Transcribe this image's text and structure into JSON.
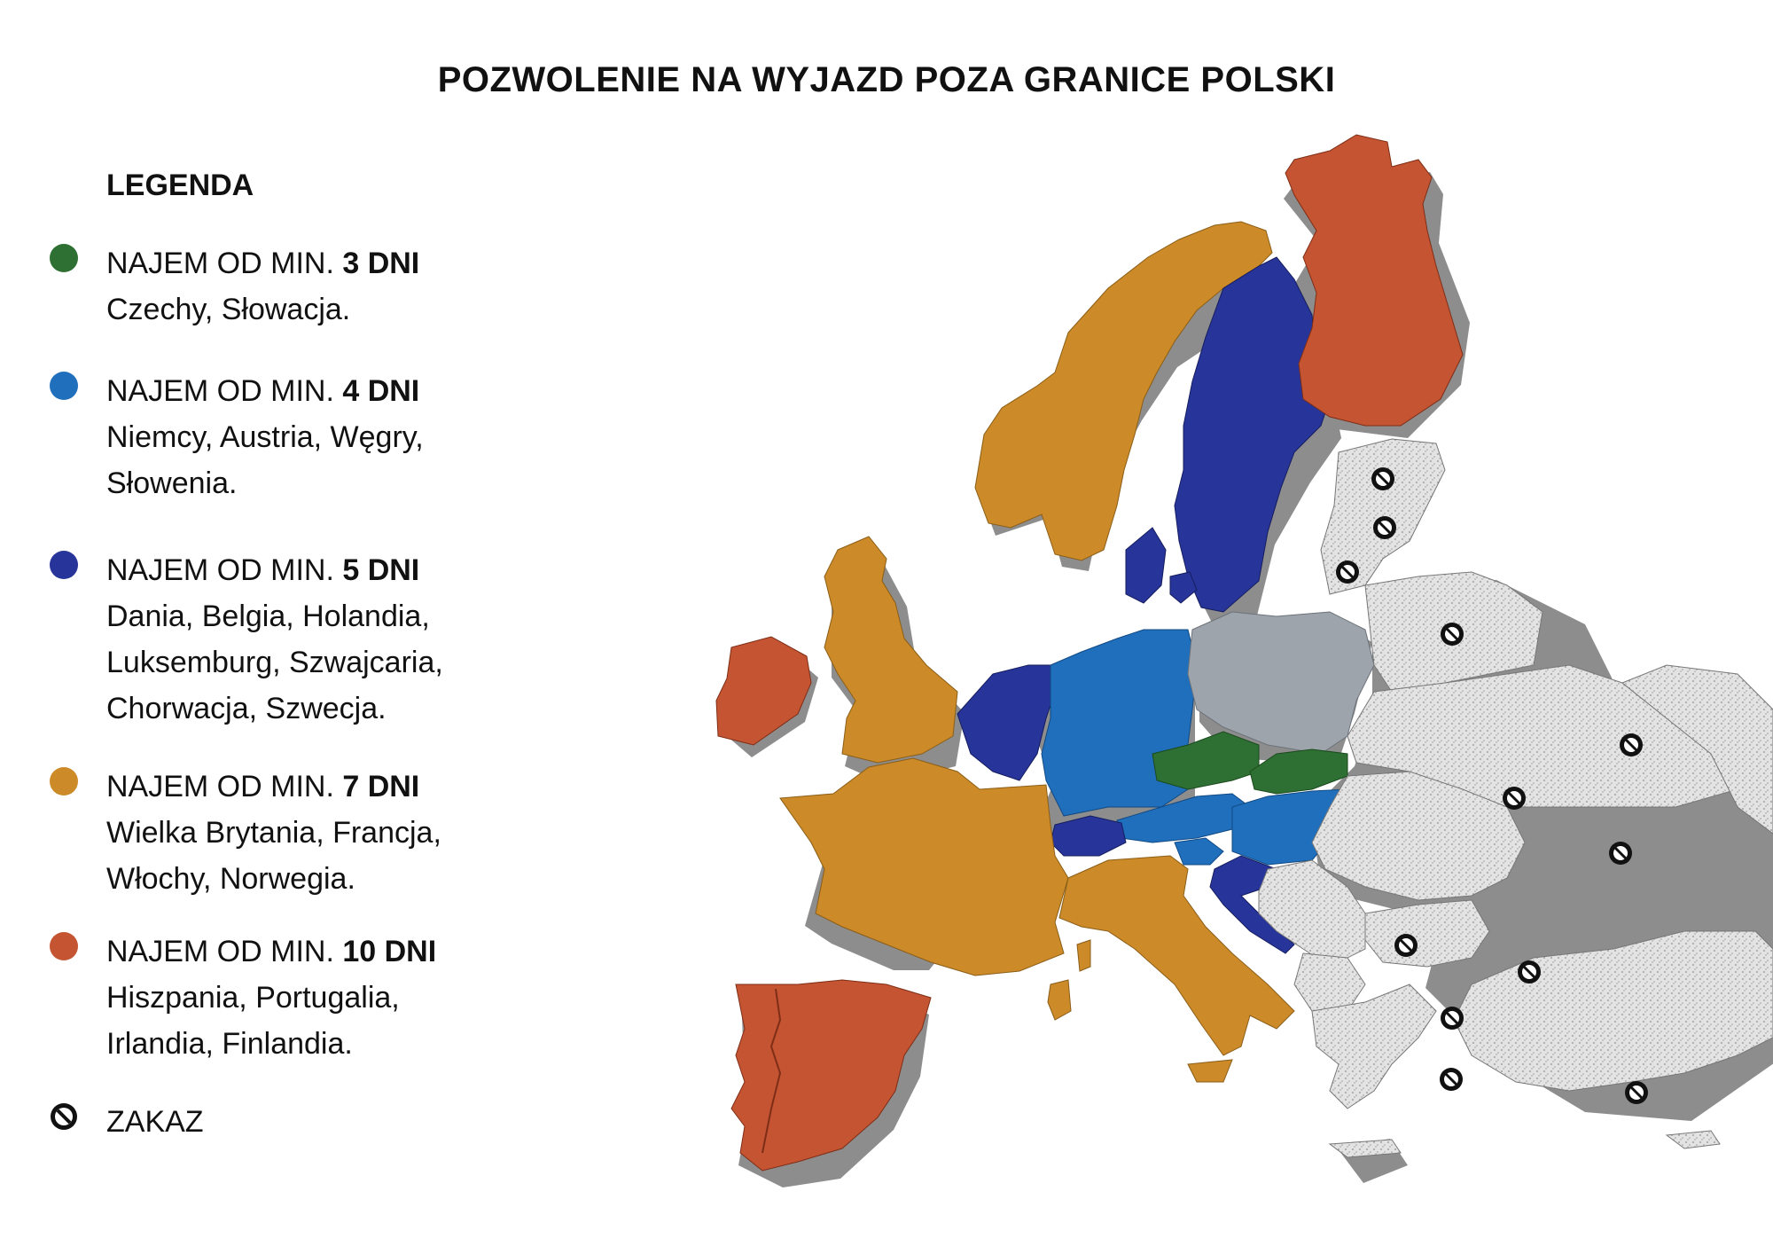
{
  "title": "POZWOLENIE NA WYJAZD POZA GRANICE POLSKI",
  "legend": {
    "heading": "LEGENDA",
    "items": [
      {
        "prefix": "NAJEM OD MIN. ",
        "days": "3 DNI",
        "countries": "Czechy, Słowacja.",
        "color": "#2e7033"
      },
      {
        "prefix": "NAJEM OD MIN. ",
        "days": "4 DNI",
        "countries": "Niemcy, Austria, Węgry, Słowenia.",
        "color": "#1f6fbd"
      },
      {
        "prefix": "NAJEM OD MIN. ",
        "days": "5 DNI",
        "countries": "Dania, Belgia, Holandia, Luksemburg, Szwajcaria, Chorwacja, Szwecja.",
        "color": "#27359a"
      },
      {
        "prefix": "NAJEM OD MIN. ",
        "days": "7 DNI",
        "countries": "Wielka Brytania, Francja, Włochy, Norwegia.",
        "color": "#cd8a28"
      },
      {
        "prefix": "NAJEM OD MIN. ",
        "days": "10 DNI",
        "countries": "Hiszpania, Portugalia, Irlandia, Finlandia.",
        "color": "#c45432"
      }
    ],
    "ban_label": "ZAKAZ"
  },
  "colors": {
    "poland": "#9ea4ac",
    "banned_fill": "#e0e0e0",
    "extrusion": "#8d8d8d"
  }
}
